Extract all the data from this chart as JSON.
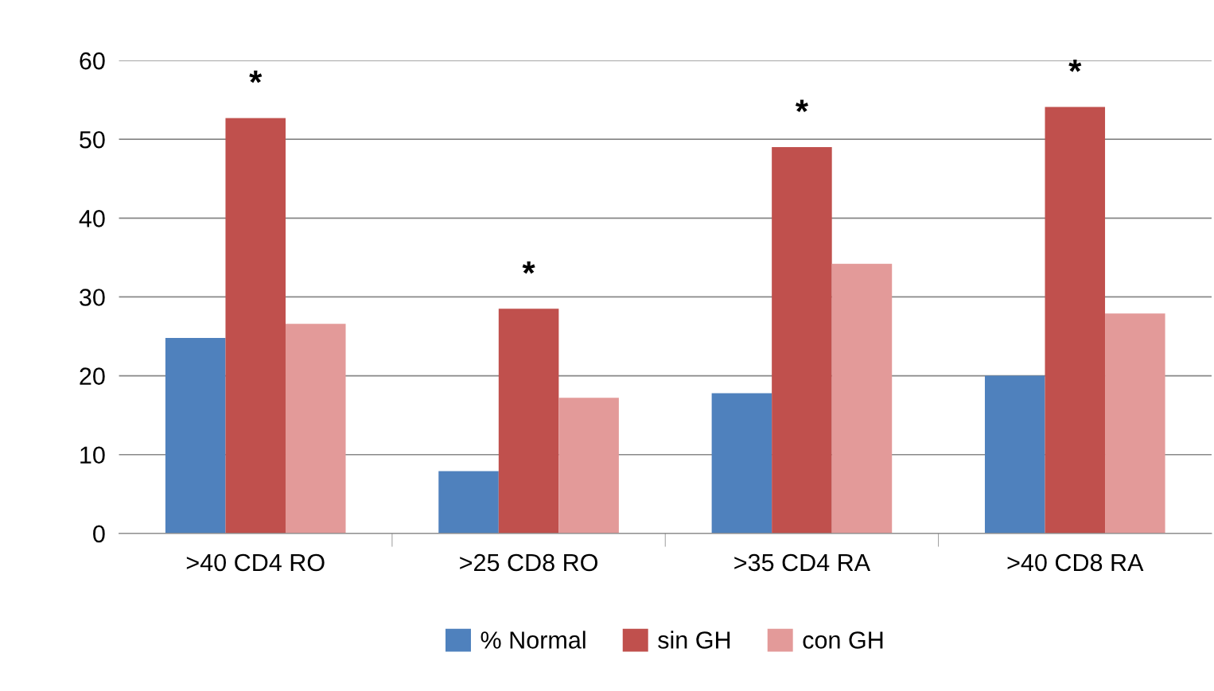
{
  "chart_data": {
    "type": "bar",
    "categories": [
      ">40 CD4 RO",
      ">25 CD8 RO",
      ">35 CD4 RA",
      ">40 CD8 RA"
    ],
    "series": [
      {
        "name": "% Normal",
        "color": "#4f81bd",
        "values": [
          24.8,
          7.9,
          17.8,
          20.0
        ]
      },
      {
        "name": "sin GH",
        "color": "#c0504d",
        "values": [
          52.7,
          28.5,
          49.0,
          54.1
        ]
      },
      {
        "name": "con GH",
        "color": "#e39a99",
        "values": [
          26.6,
          17.2,
          34.2,
          27.9
        ]
      }
    ],
    "ylim": [
      0,
      60
    ],
    "yticks": [
      0,
      10,
      20,
      30,
      40,
      50,
      60
    ],
    "grid": "y",
    "legend": "bottom",
    "annotations": [
      "*",
      "*",
      "*",
      "*"
    ]
  }
}
